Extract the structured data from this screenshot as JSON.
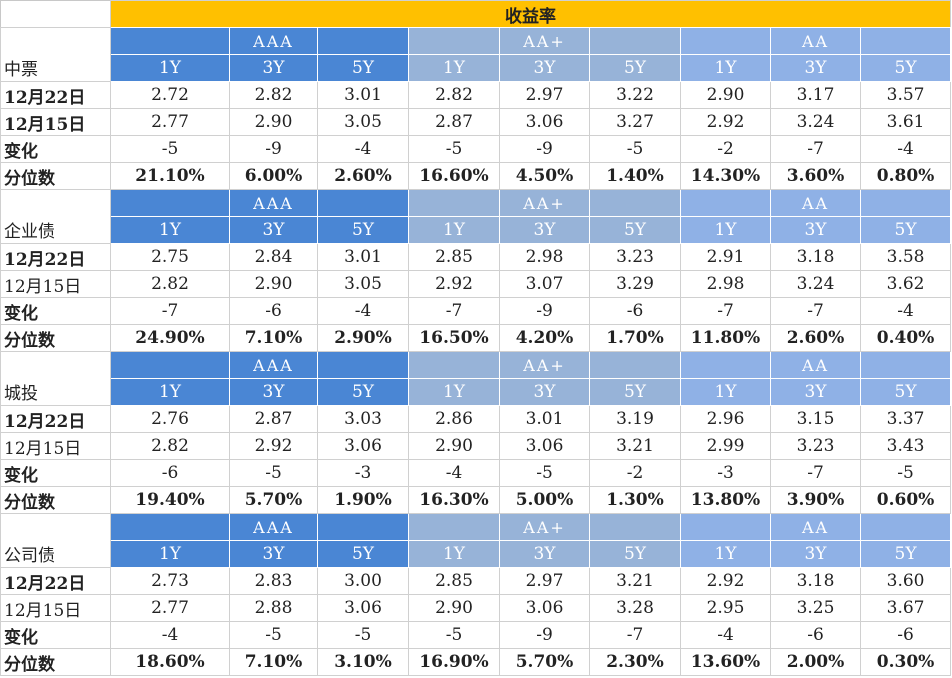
{
  "header": {
    "title": "收益率"
  },
  "groups": [
    "AAA",
    "AA+",
    "AA"
  ],
  "tenors": [
    "1Y",
    "3Y",
    "5Y"
  ],
  "sections": [
    {
      "name": "中票",
      "rows": [
        {
          "label": "12月22日",
          "bold": true,
          "bold_values": false,
          "values": [
            "2.72",
            "2.82",
            "3.01",
            "2.82",
            "2.97",
            "3.22",
            "2.90",
            "3.17",
            "3.57"
          ]
        },
        {
          "label": "12月15日",
          "bold": true,
          "bold_values": false,
          "values": [
            "2.77",
            "2.90",
            "3.05",
            "2.87",
            "3.06",
            "3.27",
            "2.92",
            "3.24",
            "3.61"
          ]
        },
        {
          "label": "变化",
          "bold": true,
          "bold_values": false,
          "values": [
            "-5",
            "-9",
            "-4",
            "-5",
            "-9",
            "-5",
            "-2",
            "-7",
            "-4"
          ]
        },
        {
          "label": "分位数",
          "bold": true,
          "bold_values": true,
          "values": [
            "21.10%",
            "6.00%",
            "2.60%",
            "16.60%",
            "4.50%",
            "1.40%",
            "14.30%",
            "3.60%",
            "0.80%"
          ]
        }
      ]
    },
    {
      "name": "企业债",
      "rows": [
        {
          "label": "12月22日",
          "bold": true,
          "bold_values": false,
          "values": [
            "2.75",
            "2.84",
            "3.01",
            "2.85",
            "2.98",
            "3.23",
            "2.91",
            "3.18",
            "3.58"
          ]
        },
        {
          "label": "12月15日",
          "bold": false,
          "bold_values": false,
          "values": [
            "2.82",
            "2.90",
            "3.05",
            "2.92",
            "3.07",
            "3.29",
            "2.98",
            "3.24",
            "3.62"
          ]
        },
        {
          "label": "变化",
          "bold": true,
          "bold_values": false,
          "values": [
            "-7",
            "-6",
            "-4",
            "-7",
            "-9",
            "-6",
            "-7",
            "-7",
            "-4"
          ]
        },
        {
          "label": "分位数",
          "bold": true,
          "bold_values": true,
          "values": [
            "24.90%",
            "7.10%",
            "2.90%",
            "16.50%",
            "4.20%",
            "1.70%",
            "11.80%",
            "2.60%",
            "0.40%"
          ]
        }
      ]
    },
    {
      "name": "城投",
      "rows": [
        {
          "label": "12月22日",
          "bold": true,
          "bold_values": false,
          "values": [
            "2.76",
            "2.87",
            "3.03",
            "2.86",
            "3.01",
            "3.19",
            "2.96",
            "3.15",
            "3.37"
          ]
        },
        {
          "label": "12月15日",
          "bold": false,
          "bold_values": false,
          "values": [
            "2.82",
            "2.92",
            "3.06",
            "2.90",
            "3.06",
            "3.21",
            "2.99",
            "3.23",
            "3.43"
          ]
        },
        {
          "label": "变化",
          "bold": true,
          "bold_values": false,
          "values": [
            "-6",
            "-5",
            "-3",
            "-4",
            "-5",
            "-2",
            "-3",
            "-7",
            "-5"
          ]
        },
        {
          "label": "分位数",
          "bold": true,
          "bold_values": true,
          "values": [
            "19.40%",
            "5.70%",
            "1.90%",
            "16.30%",
            "5.00%",
            "1.30%",
            "13.80%",
            "3.90%",
            "0.60%"
          ]
        }
      ]
    },
    {
      "name": "公司债",
      "rows": [
        {
          "label": "12月22日",
          "bold": true,
          "bold_values": false,
          "values": [
            "2.73",
            "2.83",
            "3.00",
            "2.85",
            "2.97",
            "3.21",
            "2.92",
            "3.18",
            "3.60"
          ]
        },
        {
          "label": "12月15日",
          "bold": false,
          "bold_values": false,
          "values": [
            "2.77",
            "2.88",
            "3.06",
            "2.90",
            "3.06",
            "3.28",
            "2.95",
            "3.25",
            "3.67"
          ]
        },
        {
          "label": "变化",
          "bold": true,
          "bold_values": false,
          "values": [
            "-4",
            "-5",
            "-5",
            "-5",
            "-9",
            "-7",
            "-4",
            "-6",
            "-6"
          ]
        },
        {
          "label": "分位数",
          "bold": true,
          "bold_values": true,
          "values": [
            "18.60%",
            "7.10%",
            "3.10%",
            "16.90%",
            "5.70%",
            "2.30%",
            "13.60%",
            "2.00%",
            "0.30%"
          ]
        }
      ]
    }
  ],
  "colors": {
    "header_yellow": "#ffc000",
    "group_aaa": "#4a86d4",
    "group_aa_plus": "#97b3d8",
    "group_aa": "#8fb1e6"
  }
}
